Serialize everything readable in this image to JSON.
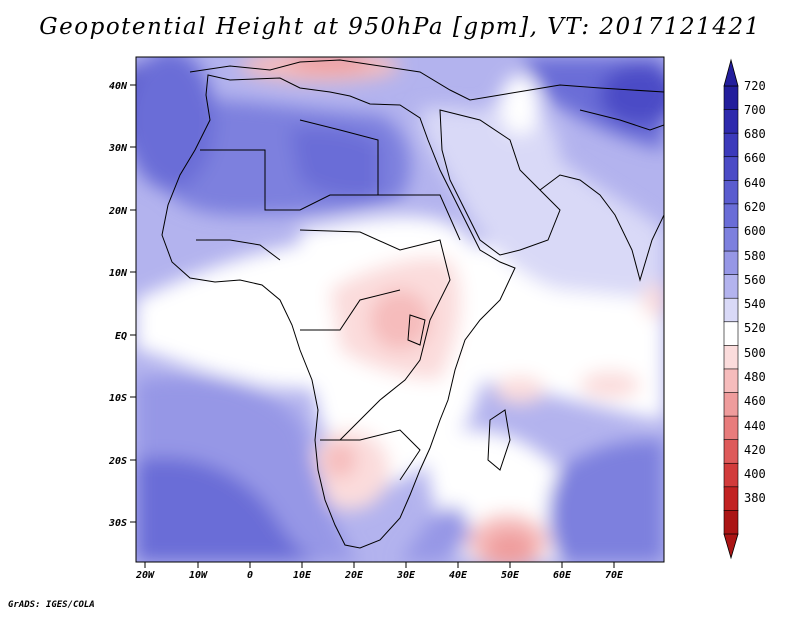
{
  "title": "Geopotential Height at 950hPa [gpm], VT: 2017121421",
  "credit": "GrADS: IGES/COLA",
  "axes": {
    "lon_labels": [
      "20W",
      "10W",
      "0",
      "10E",
      "20E",
      "30E",
      "40E",
      "50E",
      "60E",
      "70E"
    ],
    "lat_labels": [
      "40N",
      "30N",
      "20N",
      "10N",
      "EQ",
      "10S",
      "20S",
      "30S"
    ]
  },
  "colorbar": {
    "levels": [
      "720",
      "700",
      "680",
      "660",
      "640",
      "620",
      "600",
      "580",
      "560",
      "540",
      "520",
      "500",
      "480",
      "460",
      "440",
      "420",
      "400",
      "380"
    ],
    "colors": [
      "#231e9c",
      "#2e2aad",
      "#3c3abb",
      "#4b4bc6",
      "#5a5ccf",
      "#6a6dd7",
      "#7d80de",
      "#9697e6",
      "#b3b3ee",
      "#d9d9f7",
      "#ffffff",
      "#fbdcdc",
      "#f6bcbc",
      "#ef9c9c",
      "#e87c7c",
      "#de5a5a",
      "#d23b3b",
      "#c22222",
      "#ab1515"
    ]
  }
}
